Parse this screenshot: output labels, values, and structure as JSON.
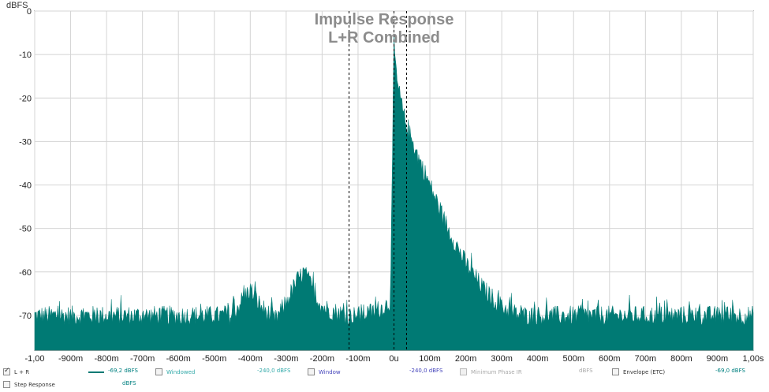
{
  "chart_data": {
    "type": "area",
    "title": "Impulse Response",
    "subtitle": "L+R Combined",
    "ylabel": "dBFS",
    "xlabel": "",
    "xlim": [
      -1.0,
      1.0
    ],
    "ylim": [
      -78,
      0
    ],
    "x_tick_values": [
      -1.0,
      -0.9,
      -0.8,
      -0.7,
      -0.6,
      -0.5,
      -0.4,
      -0.3,
      -0.2,
      -0.1,
      0,
      0.1,
      0.2,
      0.3,
      0.4,
      0.5,
      0.6,
      0.7,
      0.8,
      0.9,
      1.0
    ],
    "x_tick_labels": [
      "-1,00",
      "-900m",
      "-800m",
      "-700m",
      "-600m",
      "-500m",
      "-400m",
      "-300m",
      "-200m",
      "-100m",
      "0u",
      "100m",
      "200m",
      "300m",
      "400m",
      "500m",
      "600m",
      "700m",
      "800m",
      "900m",
      "1,00s"
    ],
    "y_tick_values": [
      0,
      -10,
      -20,
      -30,
      -40,
      -50,
      -60,
      -70
    ],
    "y_tick_labels": [
      "0",
      "-10",
      "-20",
      "-30",
      "-40",
      "-50",
      "-60",
      "-70"
    ],
    "grid": true,
    "window_markers": [
      -0.125,
      0.0,
      0.035
    ],
    "series_color": "#007a74",
    "envelope": {
      "x": [
        -1.0,
        -0.9,
        -0.8,
        -0.7,
        -0.6,
        -0.5,
        -0.45,
        -0.42,
        -0.4,
        -0.37,
        -0.33,
        -0.3,
        -0.27,
        -0.25,
        -0.22,
        -0.2,
        -0.17,
        -0.13,
        -0.1,
        -0.05,
        -0.01,
        0.0,
        0.005,
        0.01,
        0.02,
        0.03,
        0.04,
        0.05,
        0.07,
        0.1,
        0.13,
        0.15,
        0.2,
        0.25,
        0.3,
        0.35,
        0.4,
        0.5,
        0.6,
        0.7,
        0.8,
        0.9,
        1.0
      ],
      "y": [
        -70,
        -70,
        -70,
        -70,
        -70,
        -70,
        -70,
        -66,
        -64,
        -68,
        -71,
        -67,
        -62,
        -60,
        -65,
        -68,
        -69,
        -70,
        -70,
        -69,
        -67,
        -8,
        -13,
        -17,
        -21,
        -25,
        -27,
        -30,
        -34,
        -40,
        -46,
        -50,
        -58,
        -64,
        -68,
        -70,
        -70,
        -70,
        -70,
        -70,
        -70,
        -70,
        -70
      ]
    }
  },
  "legend": {
    "row1": [
      {
        "label": "L + R",
        "value": "-69,2 dBFS",
        "checked": true,
        "value_color": "#008080"
      },
      {
        "label": "Windowed",
        "value": "-240,0 dBFS",
        "checked": false,
        "value_color": "#33aaaa"
      },
      {
        "label": "Window",
        "value": "-240,0 dBFS",
        "checked": false,
        "value_color": "#4444bb"
      },
      {
        "label": "Minimum Phase IR",
        "value": "dBFS",
        "checked": false,
        "value_color": "#aaaaaa"
      },
      {
        "label": "Envelope (ETC)",
        "value": "-69,0 dBFS",
        "checked": false,
        "value_color": "#008080"
      }
    ],
    "row2": [
      {
        "label": "Step Response",
        "value": "dBFS",
        "checked": false,
        "value_color": "#008080"
      }
    ]
  }
}
